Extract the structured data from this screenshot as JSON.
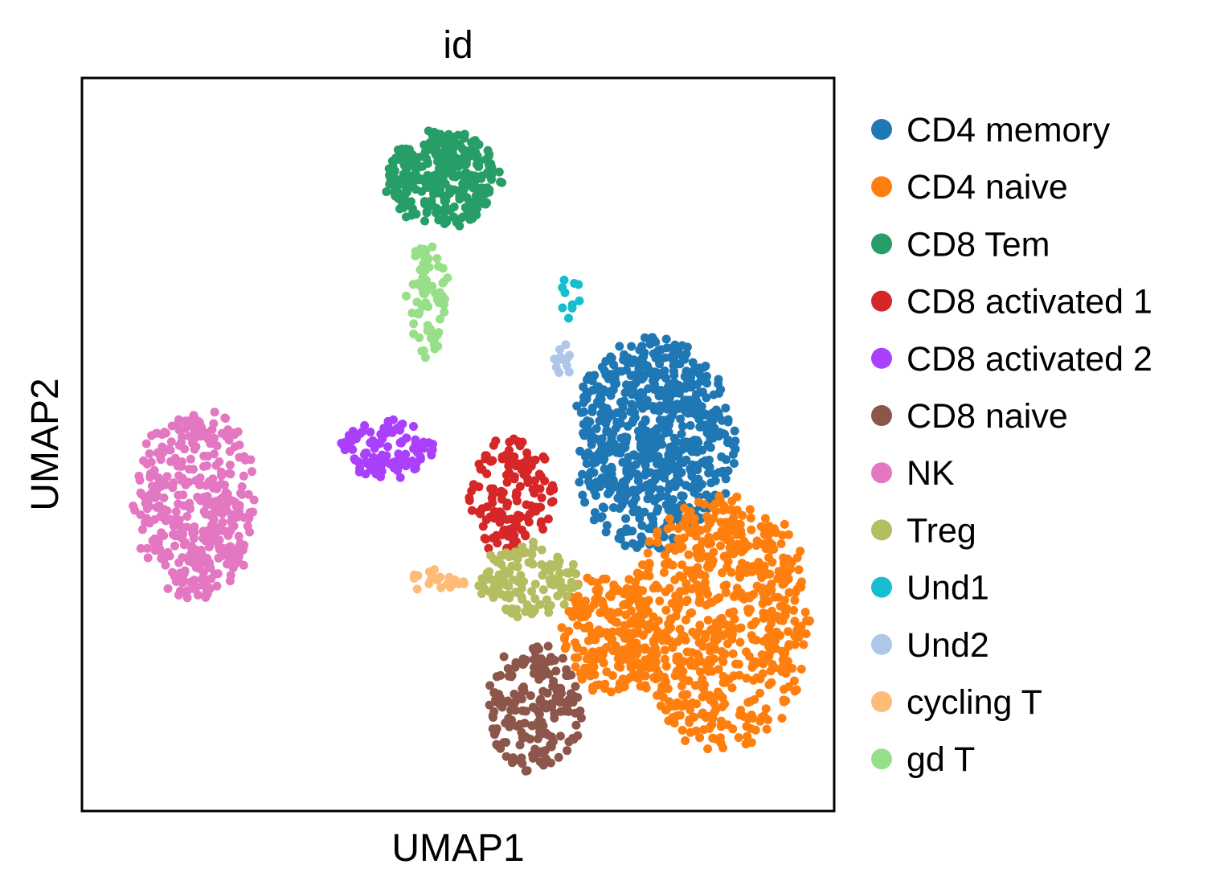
{
  "chart_data": {
    "type": "scatter",
    "title": "id",
    "xlabel": "UMAP1",
    "ylabel": "UMAP2",
    "xlim": [
      0,
      100
    ],
    "ylim": [
      0,
      100
    ],
    "grid": false,
    "ticks": false,
    "legend_position": "right",
    "series": [
      {
        "name": "CD4 memory",
        "color": "#1f77b4",
        "clusters": [
          {
            "cx": 76,
            "cy": 50,
            "rx": 10.5,
            "ry": 14,
            "n": 700
          }
        ]
      },
      {
        "name": "CD4 naive",
        "color": "#ff7f0e",
        "clusters": [
          {
            "cx": 85,
            "cy": 26,
            "rx": 12,
            "ry": 17,
            "n": 650
          },
          {
            "cx": 70,
            "cy": 24,
            "rx": 6.5,
            "ry": 8,
            "n": 200
          }
        ]
      },
      {
        "name": "CD8 Tem",
        "color": "#279e68",
        "clusters": [
          {
            "cx": 48,
            "cy": 86.5,
            "rx": 7.5,
            "ry": 6.5,
            "n": 330
          }
        ]
      },
      {
        "name": "CD8 activated 1",
        "color": "#d62728",
        "clusters": [
          {
            "cx": 57,
            "cy": 43,
            "rx": 5.5,
            "ry": 8,
            "n": 150
          }
        ]
      },
      {
        "name": "CD8 activated 2",
        "color": "#aa40fc",
        "clusters": [
          {
            "cx": 40.5,
            "cy": 49.5,
            "rx": 6,
            "ry": 4,
            "n": 110
          }
        ]
      },
      {
        "name": "CD8 naive",
        "color": "#8c564b",
        "clusters": [
          {
            "cx": 60,
            "cy": 14,
            "rx": 6.5,
            "ry": 8.5,
            "n": 190
          }
        ]
      },
      {
        "name": "NK",
        "color": "#e377c2",
        "clusters": [
          {
            "cx": 15,
            "cy": 42,
            "rx": 8,
            "ry": 12.5,
            "n": 380
          }
        ]
      },
      {
        "name": "Treg",
        "color": "#b5bd61",
        "clusters": [
          {
            "cx": 59.5,
            "cy": 31.5,
            "rx": 6.5,
            "ry": 5,
            "n": 120
          }
        ]
      },
      {
        "name": "Und1",
        "color": "#17becf",
        "clusters": [
          {
            "cx": 65,
            "cy": 70.5,
            "rx": 1.3,
            "ry": 3.5,
            "n": 10
          }
        ]
      },
      {
        "name": "Und2",
        "color": "#aec7e8",
        "clusters": [
          {
            "cx": 64.5,
            "cy": 61.5,
            "rx": 1.6,
            "ry": 2.2,
            "n": 12
          }
        ]
      },
      {
        "name": "cycling T",
        "color": "#ffbb78",
        "clusters": [
          {
            "cx": 47.5,
            "cy": 31.5,
            "rx": 4.5,
            "ry": 1.6,
            "n": 22
          }
        ]
      },
      {
        "name": "gd T",
        "color": "#98df8a",
        "clusters": [
          {
            "cx": 46,
            "cy": 69.5,
            "rx": 2.8,
            "ry": 8,
            "n": 75
          }
        ]
      }
    ]
  }
}
